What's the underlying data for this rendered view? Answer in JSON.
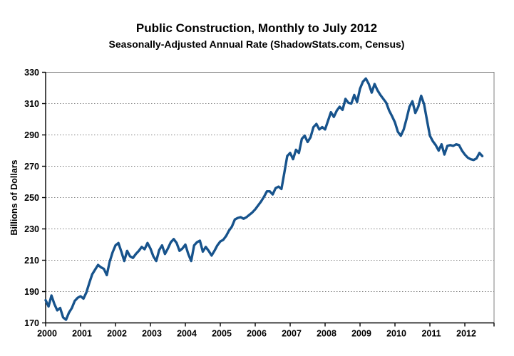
{
  "header": {
    "title": "Public Construction, Monthly to July 2012",
    "subtitle": "Seasonally-Adjusted Annual Rate (ShadowStats.com, Census)"
  },
  "chart_data": {
    "type": "line",
    "title": "Public Construction, Monthly to July 2012",
    "subtitle": "Seasonally-Adjusted Annual Rate (ShadowStats.com, Census)",
    "ylabel": "Billions of Dollars",
    "frequency": "monthly",
    "x_start": "2000-01",
    "x_end": "2012-07",
    "xticks": [
      2000,
      2001,
      2002,
      2003,
      2004,
      2005,
      2006,
      2007,
      2008,
      2009,
      2010,
      2011,
      2012
    ],
    "yticks": [
      170,
      190,
      210,
      230,
      250,
      270,
      290,
      310,
      330
    ],
    "ylim": [
      170,
      330
    ],
    "grid": "horizontal-dotted",
    "legend": "none",
    "line_color": "#17538C",
    "grid_color": "#808080",
    "axis_color": "#000000",
    "series": [
      {
        "name": "Public Construction Spending (SAAR)",
        "monthly_values": [
          184.5,
          180.5,
          187.5,
          182,
          178,
          179.5,
          173.5,
          172,
          176.5,
          179.5,
          184,
          186,
          187,
          185.5,
          189.5,
          195.5,
          201,
          204,
          207,
          205.5,
          204.5,
          200.5,
          209,
          215,
          219.5,
          221,
          215.5,
          209.5,
          216,
          212.5,
          211.5,
          214,
          216,
          218.5,
          217,
          221,
          217.5,
          212.5,
          209.5,
          216.5,
          219.5,
          214,
          217.5,
          221.5,
          223.5,
          221,
          216,
          217.5,
          220,
          214,
          209.5,
          219.5,
          221.5,
          222.5,
          215.5,
          218.5,
          216,
          213,
          216,
          219.5,
          222,
          223,
          225.5,
          229,
          231.5,
          236,
          237,
          237.5,
          236.5,
          237.5,
          239,
          240.5,
          242.5,
          245,
          247.5,
          250.5,
          254,
          254,
          252,
          256,
          257,
          255.5,
          266,
          276.5,
          278.5,
          274.5,
          280.5,
          278.5,
          287.5,
          289.5,
          285.5,
          288.5,
          295,
          297,
          293.5,
          295,
          293.5,
          299,
          304.5,
          301.5,
          305.5,
          308,
          306,
          313,
          310.5,
          310,
          315.5,
          311,
          319.5,
          324,
          326,
          322.5,
          317,
          322.5,
          318.5,
          315.5,
          313,
          310.5,
          305.5,
          302,
          298,
          292,
          289.5,
          293.5,
          300.5,
          308,
          311.5,
          304,
          308,
          315,
          309.5,
          299.5,
          289.5,
          286,
          283.5,
          280,
          284,
          277.5,
          283,
          283.5,
          283,
          284,
          283.5,
          280,
          277.5,
          275.5,
          274.5,
          274,
          275,
          278.5,
          276.5
        ]
      }
    ]
  }
}
